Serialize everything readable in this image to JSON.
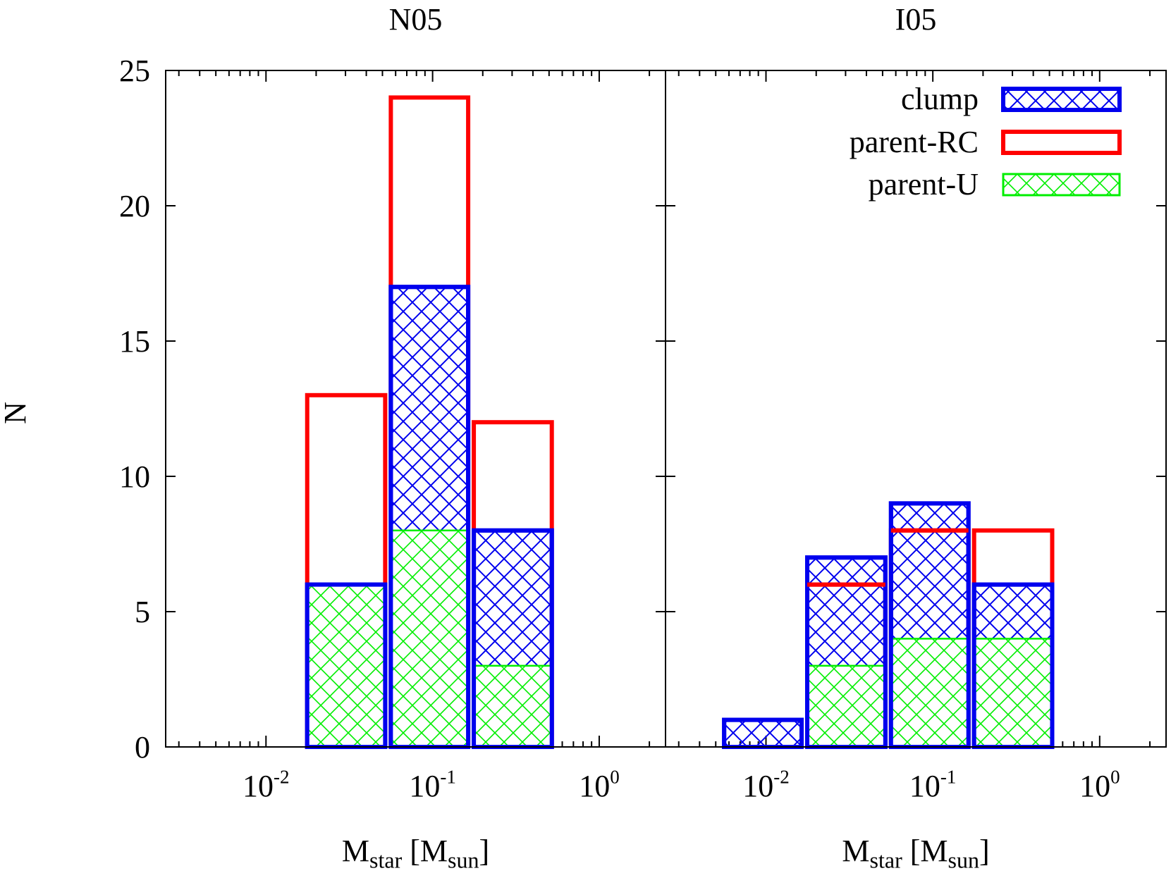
{
  "chart_data": [
    {
      "type": "bar",
      "title": "N05",
      "xlabel": "M_star [M_sun]",
      "ylabel": "N",
      "xscale": "log",
      "xlim": [
        0.0025,
        2.5
      ],
      "ylim": [
        0,
        25
      ],
      "xticks": [
        "10^-2",
        "10^-1",
        "10^0"
      ],
      "yticks": [
        "0",
        "5",
        "10",
        "15",
        "20",
        "25"
      ],
      "bin_edges": [
        0.0054,
        0.017,
        0.054,
        0.17,
        0.54
      ],
      "series": [
        {
          "name": "parent-RC",
          "values": [
            0,
            13,
            24,
            12
          ]
        },
        {
          "name": "clump",
          "values": [
            0,
            6,
            17,
            8
          ]
        },
        {
          "name": "parent-U",
          "values": [
            0,
            6,
            8,
            3
          ]
        }
      ]
    },
    {
      "type": "bar",
      "title": "I05",
      "xlabel": "M_star [M_sun]",
      "ylabel": "",
      "xscale": "log",
      "xlim": [
        0.0025,
        2.5
      ],
      "ylim": [
        0,
        25
      ],
      "xticks": [
        "10^-2",
        "10^-1",
        "10^0"
      ],
      "yticks": [],
      "bin_edges": [
        0.0054,
        0.017,
        0.054,
        0.17,
        0.54
      ],
      "series": [
        {
          "name": "parent-RC",
          "values": [
            0,
            6,
            8,
            8
          ]
        },
        {
          "name": "clump",
          "values": [
            1,
            7,
            9,
            6
          ]
        },
        {
          "name": "parent-U",
          "values": [
            0,
            3,
            4,
            4
          ]
        }
      ]
    }
  ],
  "legend": {
    "placement": "top-right",
    "items": [
      {
        "label": "clump",
        "style": "hatched",
        "color": "#0000ee"
      },
      {
        "label": "parent-RC",
        "style": "outline",
        "color": "#ff0000"
      },
      {
        "label": "parent-U",
        "style": "hatched",
        "color": "#00ee00"
      }
    ]
  },
  "colors": {
    "clump": "#0000ee",
    "parent_rc": "#ff0000",
    "parent_u": "#00ee00"
  }
}
